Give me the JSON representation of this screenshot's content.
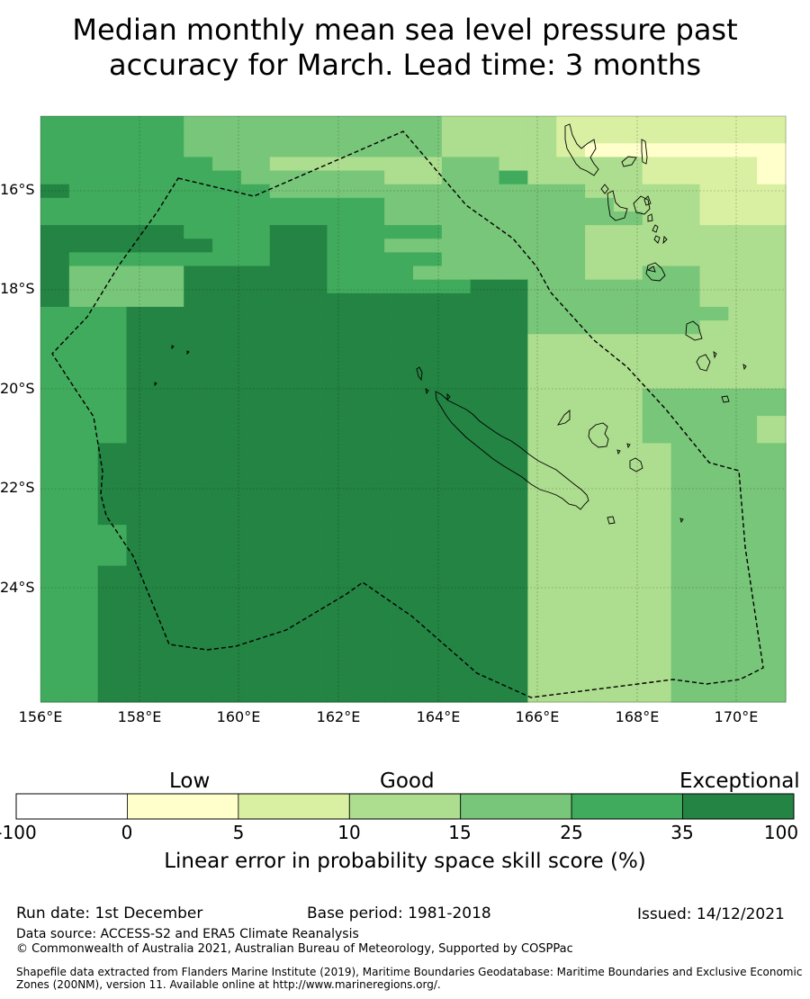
{
  "title": {
    "line1": "Median monthly mean sea level pressure past",
    "line2": "accuracy for March. Lead time: 3 months"
  },
  "map": {
    "lat_labels": [
      "16°S",
      "18°S",
      "20°S",
      "22°S",
      "24°S"
    ],
    "lon_labels": [
      "156°E",
      "158°E",
      "160°E",
      "162°E",
      "164°E",
      "166°E",
      "168°E",
      "170°E"
    ],
    "grid_codes": [
      "55555444444444333322222222",
      "55555444444444333322222222",
      "55555444444444333321111111",
      "55555544333333443333322221",
      "55555554444433445333322221",
      "65555555444444444443333222",
      "55555555555544444444333222",
      "55555555555544444444433222",
      "66666555665555444443333333",
      "66666655665544444443333333",
      "65555555665555444443333333",
      "64444666665554444443344333",
      "64444666665555566444444333",
      "64444666666666666444444333",
      "55566666666666666444444433",
      "55566666666666666444444333",
      "55566666666666666333333333",
      "55566666666666666333333333",
      "55566666666666666333333333",
      "55566666666666666333333333",
      "55566666666666666333344444",
      "55566666666666666333344444",
      "55566666666666666333344443",
      "55566666666666666333344443",
      "55666666666666666333334444",
      "55666666666666666333334444",
      "55666666666666666333334444",
      "55666666666666666333334444",
      "55666666666666666333334444",
      "55666666666666666333334444",
      "55566666666666666333334444",
      "55566666666666666333334444",
      "55566666666666666333334444",
      "55666666666666666333334444",
      "55666666666666666333334444",
      "55666666666666666333334444",
      "55666666666666666333334444",
      "55666666666666666333334444",
      "55666666666666666333334444",
      "55666666666666666333334444",
      "55666666666666666333334444",
      "55666666666666666333334444",
      "55666666666666666333334444"
    ]
  },
  "colorbar": {
    "categories": [
      "Low",
      "Good",
      "Exceptional"
    ],
    "bins": [
      {
        "from": "-100",
        "to": "0",
        "color": "#ffffff"
      },
      {
        "from": "0",
        "to": "5",
        "color": "#ffffcc"
      },
      {
        "from": "5",
        "to": "10",
        "color": "#d9f0a3"
      },
      {
        "from": "10",
        "to": "15",
        "color": "#addd8e"
      },
      {
        "from": "15",
        "to": "25",
        "color": "#78c679"
      },
      {
        "from": "25",
        "to": "35",
        "color": "#41ab5d"
      },
      {
        "from": "35",
        "to": "100",
        "color": "#238443"
      }
    ],
    "ticks": [
      "-100",
      "0",
      "5",
      "10",
      "15",
      "25",
      "35",
      "100"
    ],
    "label": "Linear error in probability space skill score (%)"
  },
  "footer": {
    "run_date": "Run date: 1st December",
    "base_period": "Base period: 1981-2018",
    "issued": "Issued: 14/12/2021",
    "data_source": "Data source: ACCESS-S2 and ERA5 Climate Reanalysis",
    "copyright": "© Commonwealth of Australia 2021, Australian Bureau of Meteorology, Supported by COSPPac",
    "shapefile": "Shapefile data extracted from Flanders Marine Institute (2019), Maritime Boundaries Geodatabase: Maritime Boundaries and Exclusive Economic Zones (200NM), version 11. Available online at http://www.marineregions.org/."
  }
}
